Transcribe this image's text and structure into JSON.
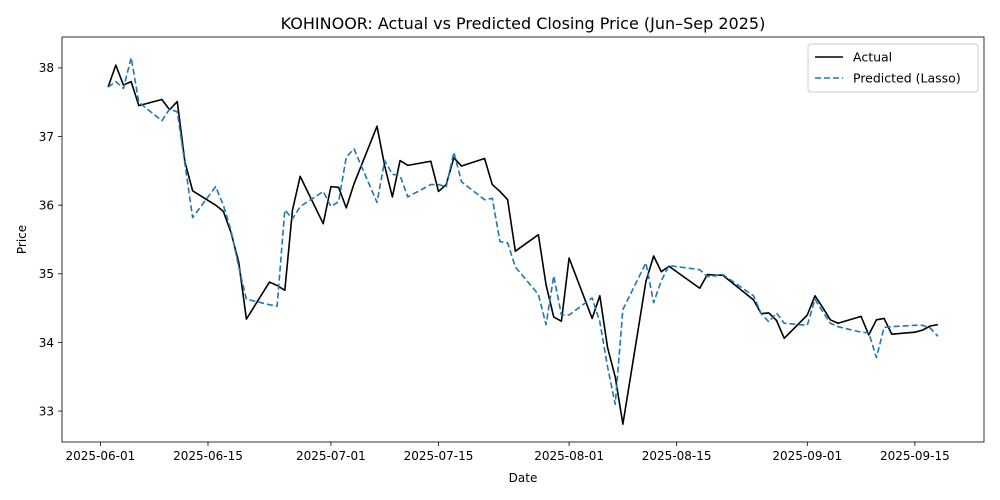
{
  "chart_data": {
    "type": "line",
    "title": "KOHINOOR: Actual vs Predicted Closing Price (Jun–Sep 2025)",
    "xlabel": "Date",
    "ylabel": "Price",
    "xlim": [
      "2025-05-27",
      "2025-09-24"
    ],
    "ylim": [
      32.55,
      38.45
    ],
    "x_ticks": [
      "2025-06-01",
      "2025-06-15",
      "2025-07-01",
      "2025-07-15",
      "2025-08-01",
      "2025-08-15",
      "2025-09-01",
      "2025-09-15"
    ],
    "y_ticks": [
      33,
      34,
      35,
      36,
      37,
      38
    ],
    "grid": false,
    "legend": "top-right",
    "series": [
      {
        "name": "Actual",
        "color": "#000000",
        "style": "solid",
        "x": [
          "2025-06-02",
          "2025-06-03",
          "2025-06-04",
          "2025-06-05",
          "2025-06-06",
          "2025-06-09",
          "2025-06-10",
          "2025-06-11",
          "2025-06-12",
          "2025-06-13",
          "2025-06-16",
          "2025-06-17",
          "2025-06-18",
          "2025-06-19",
          "2025-06-20",
          "2025-06-23",
          "2025-06-24",
          "2025-06-25",
          "2025-06-26",
          "2025-06-27",
          "2025-06-30",
          "2025-07-01",
          "2025-07-02",
          "2025-07-03",
          "2025-07-04",
          "2025-07-07",
          "2025-07-08",
          "2025-07-09",
          "2025-07-10",
          "2025-07-11",
          "2025-07-14",
          "2025-07-15",
          "2025-07-16",
          "2025-07-17",
          "2025-07-18",
          "2025-07-21",
          "2025-07-22",
          "2025-07-23",
          "2025-07-24",
          "2025-07-25",
          "2025-07-28",
          "2025-07-29",
          "2025-07-30",
          "2025-07-31",
          "2025-08-01",
          "2025-08-04",
          "2025-08-05",
          "2025-08-06",
          "2025-08-07",
          "2025-08-08",
          "2025-08-11",
          "2025-08-12",
          "2025-08-13",
          "2025-08-14",
          "2025-08-18",
          "2025-08-19",
          "2025-08-20",
          "2025-08-21",
          "2025-08-25",
          "2025-08-26",
          "2025-08-27",
          "2025-08-28",
          "2025-08-29",
          "2025-09-01",
          "2025-09-02",
          "2025-09-03",
          "2025-09-04",
          "2025-09-05",
          "2025-09-08",
          "2025-09-09",
          "2025-09-10",
          "2025-09-11",
          "2025-09-12",
          "2025-09-15",
          "2025-09-16",
          "2025-09-17",
          "2025-09-18"
        ],
        "values": [
          37.72,
          38.04,
          37.75,
          37.8,
          37.45,
          37.54,
          37.39,
          37.51,
          36.63,
          36.21,
          36.0,
          35.91,
          35.6,
          35.17,
          34.34,
          34.88,
          34.83,
          34.76,
          35.93,
          36.42,
          35.73,
          36.27,
          36.26,
          35.96,
          36.31,
          37.15,
          36.57,
          36.12,
          36.65,
          36.58,
          36.64,
          36.2,
          36.3,
          36.69,
          36.57,
          36.68,
          36.3,
          36.2,
          36.08,
          35.33,
          35.57,
          34.84,
          34.37,
          34.31,
          35.23,
          34.35,
          34.68,
          33.93,
          33.5,
          32.81,
          34.89,
          35.26,
          35.03,
          35.11,
          34.79,
          34.99,
          34.98,
          34.98,
          34.62,
          34.42,
          34.43,
          34.32,
          34.06,
          34.4,
          34.68,
          34.51,
          34.33,
          34.28,
          34.38,
          34.11,
          34.33,
          34.35,
          34.12,
          34.15,
          34.18,
          34.24,
          34.26
        ]
      },
      {
        "name": "Predicted (Lasso)",
        "color": "#1f77b4",
        "style": "dashed",
        "x": [
          "2025-06-02",
          "2025-06-03",
          "2025-06-04",
          "2025-06-05",
          "2025-06-06",
          "2025-06-09",
          "2025-06-10",
          "2025-06-11",
          "2025-06-12",
          "2025-06-13",
          "2025-06-16",
          "2025-06-17",
          "2025-06-18",
          "2025-06-19",
          "2025-06-20",
          "2025-06-23",
          "2025-06-24",
          "2025-06-25",
          "2025-06-26",
          "2025-06-27",
          "2025-06-30",
          "2025-07-01",
          "2025-07-02",
          "2025-07-03",
          "2025-07-04",
          "2025-07-07",
          "2025-07-08",
          "2025-07-09",
          "2025-07-10",
          "2025-07-11",
          "2025-07-14",
          "2025-07-15",
          "2025-07-16",
          "2025-07-17",
          "2025-07-18",
          "2025-07-21",
          "2025-07-22",
          "2025-07-23",
          "2025-07-24",
          "2025-07-25",
          "2025-07-28",
          "2025-07-29",
          "2025-07-30",
          "2025-07-31",
          "2025-08-01",
          "2025-08-04",
          "2025-08-05",
          "2025-08-06",
          "2025-08-07",
          "2025-08-08",
          "2025-08-11",
          "2025-08-12",
          "2025-08-13",
          "2025-08-14",
          "2025-08-18",
          "2025-08-19",
          "2025-08-20",
          "2025-08-21",
          "2025-08-25",
          "2025-08-26",
          "2025-08-27",
          "2025-08-28",
          "2025-08-29",
          "2025-09-01",
          "2025-09-02",
          "2025-09-03",
          "2025-09-04",
          "2025-09-05",
          "2025-09-08",
          "2025-09-09",
          "2025-09-10",
          "2025-09-11",
          "2025-09-12",
          "2025-09-15",
          "2025-09-16",
          "2025-09-17",
          "2025-09-18"
        ],
        "values": [
          37.72,
          37.8,
          37.7,
          38.15,
          37.5,
          37.23,
          37.4,
          37.36,
          36.6,
          35.82,
          36.27,
          36.0,
          35.63,
          35.1,
          34.63,
          34.55,
          34.53,
          35.93,
          35.8,
          35.98,
          36.2,
          35.98,
          36.05,
          36.7,
          36.82,
          36.04,
          36.65,
          36.45,
          36.43,
          36.12,
          36.3,
          36.3,
          36.27,
          36.77,
          36.34,
          36.08,
          36.1,
          35.47,
          35.45,
          35.1,
          34.7,
          34.26,
          34.97,
          34.4,
          34.4,
          34.65,
          34.3,
          33.65,
          33.1,
          34.48,
          35.16,
          34.58,
          34.9,
          35.12,
          35.06,
          34.96,
          34.97,
          34.99,
          34.68,
          34.42,
          34.3,
          34.43,
          34.28,
          34.25,
          34.63,
          34.45,
          34.28,
          34.23,
          34.15,
          34.14,
          33.78,
          34.22,
          34.23,
          34.25,
          34.25,
          34.21,
          34.09
        ]
      }
    ]
  }
}
